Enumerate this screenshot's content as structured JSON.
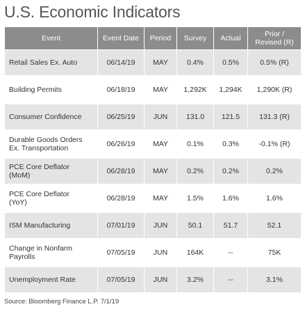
{
  "title": "U.S. Economic Indicators",
  "columns": {
    "event": "Event",
    "event_date": "Event Date",
    "period": "Period",
    "survey": "Survey",
    "actual": "Actual",
    "prior_line1": "Prior /",
    "prior_line2": "Revised (R)"
  },
  "rows": [
    {
      "event_line1": "Retail Sales Ex. Auto",
      "event_line2": "",
      "date": "06/14/19",
      "period": "MAY",
      "survey": "0.4%",
      "actual": "0.5%",
      "prior": "0.5% (R)"
    },
    {
      "event_line1": "Building Permits",
      "event_line2": "",
      "date": "06/18/19",
      "period": "MAY",
      "survey": "1,292K",
      "actual": "1,294K",
      "prior": "1,290K (R)"
    },
    {
      "event_line1": "Consumer Confidence",
      "event_line2": "",
      "date": "06/25/19",
      "period": "JUN",
      "survey": "131.0",
      "actual": "121.5",
      "prior": "131.3 (R)"
    },
    {
      "event_line1": "Durable Goods Orders",
      "event_line2": "Ex. Transportation",
      "date": "06/26/19",
      "period": "MAY",
      "survey": "0.1%",
      "actual": "0.3%",
      "prior": "-0.1% (R)"
    },
    {
      "event_line1": "PCE Core Deflator",
      "event_line2": "(MoM)",
      "date": "06/28/19",
      "period": "MAY",
      "survey": "0.2%",
      "actual": "0.2%",
      "prior": "0.2%"
    },
    {
      "event_line1": "PCE Core Deflator",
      "event_line2": "(YoY)",
      "date": "06/28/19",
      "period": "MAY",
      "survey": "1.5%",
      "actual": "1.6%",
      "prior": "1.6%"
    },
    {
      "event_line1": "ISM Manufacturing",
      "event_line2": "",
      "date": "07/01/19",
      "period": "JUN",
      "survey": "50.1",
      "actual": "51.7",
      "prior": "52.1"
    },
    {
      "event_line1": "Change in Nonfarm",
      "event_line2": "Payrolls",
      "date": "07/05/19",
      "period": "JUN",
      "survey": "164K",
      "actual": "--",
      "prior": "75K"
    },
    {
      "event_line1": "Unemployment Rate",
      "event_line2": "",
      "date": "07/05/19",
      "period": "JUN",
      "survey": "3.2%",
      "actual": "--",
      "prior": "3.1%"
    }
  ],
  "source": "Source: Bloomberg Finance L.P. 7/1/19"
}
